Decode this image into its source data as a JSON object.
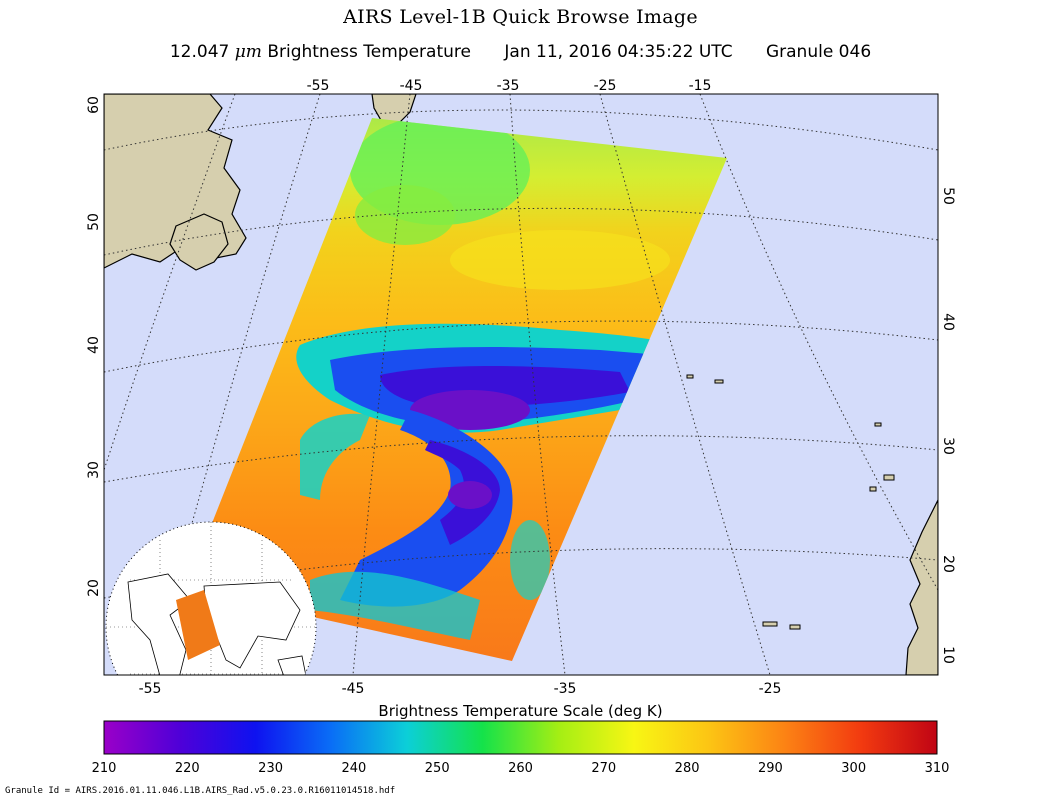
{
  "header": {
    "title": "AIRS Level-1B Quick Browse Image",
    "wavelength": "12.047",
    "unit": "μm",
    "band": "Brightness Temperature",
    "datetime": "Jan 11, 2016 04:35:22 UTC",
    "granule": "Granule 046"
  },
  "map": {
    "top_lon_labels": [
      "-55",
      "-45",
      "-35",
      "-25",
      "-15"
    ],
    "bottom_lon_labels": [
      "-55",
      "-45",
      "-35",
      "-25"
    ],
    "left_lat_labels": [
      "60",
      "50",
      "40",
      "30",
      "20"
    ],
    "right_lat_labels": [
      "50",
      "40",
      "30",
      "20",
      "10"
    ],
    "colors": {
      "ocean": "#d4dcfa",
      "land": "#d6cfae",
      "coast": "#000000",
      "grid": "#333333"
    },
    "inset": {
      "name": "globe-locator",
      "land": "#ffffff",
      "swath": "#f07a18"
    }
  },
  "colorbar": {
    "label": "Brightness Temperature Scale (deg K)",
    "ticks": [
      "210",
      "220",
      "230",
      "240",
      "250",
      "260",
      "270",
      "280",
      "290",
      "300",
      "310"
    ],
    "min": 210,
    "max": 310,
    "colors": [
      "#9a00c8",
      "#4f00d8",
      "#0e12f0",
      "#0a6ef6",
      "#0ccfd8",
      "#14e24a",
      "#a4ee14",
      "#f8f614",
      "#fcc414",
      "#fc8214",
      "#f23a10",
      "#c00414"
    ]
  },
  "footer": {
    "granule_id": "Granule Id = AIRS.2016.01.11.046.L1B.AIRS_Rad.v5.0.23.0.R16011014518.hdf"
  }
}
